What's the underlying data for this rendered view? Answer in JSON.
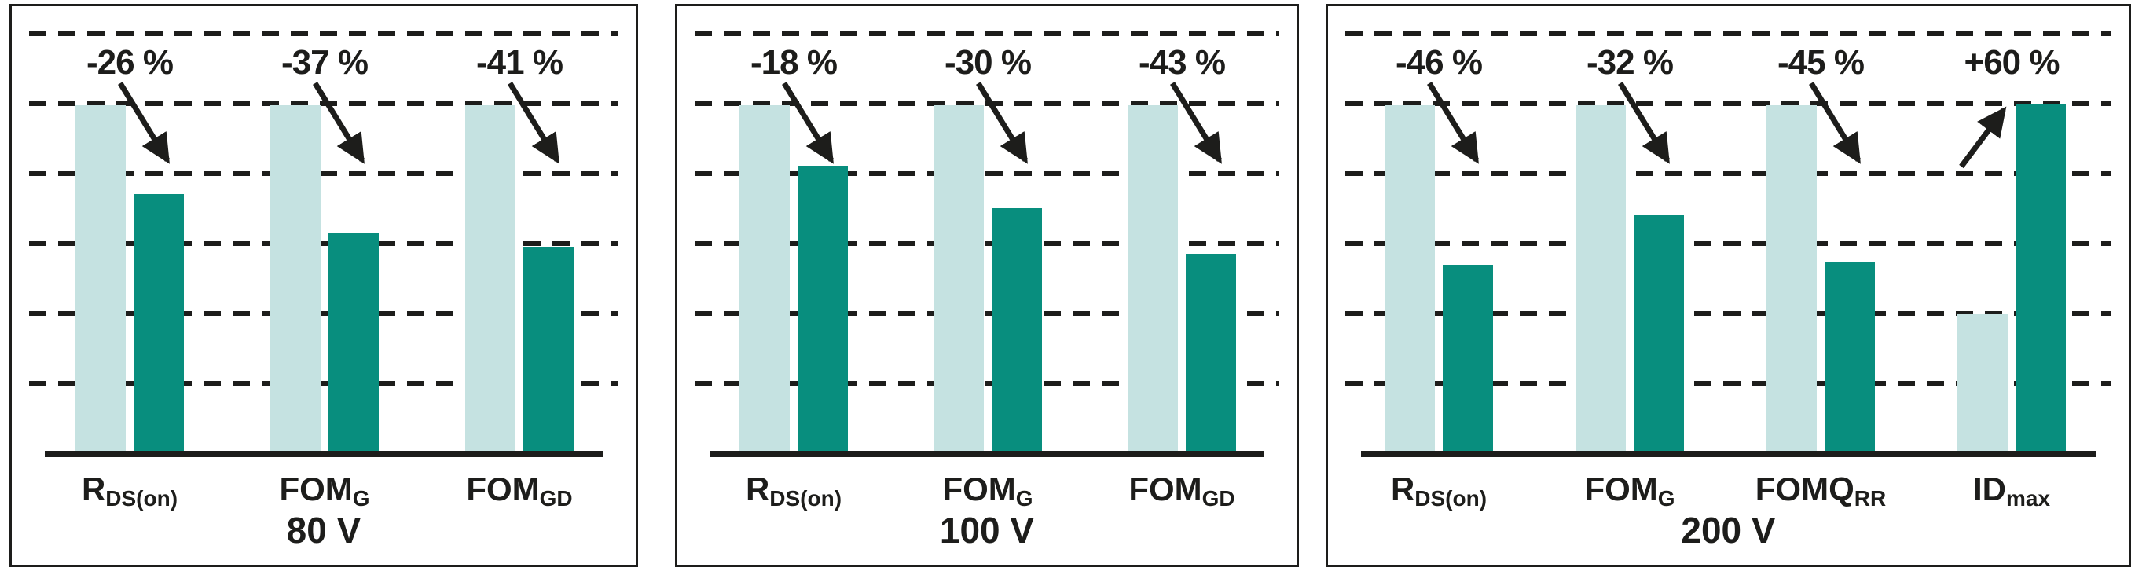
{
  "figure": {
    "description_colors": {
      "light_bar": "#c5e2e1",
      "dark_bar": "#088e7e",
      "line_and_text": "#1d1d1b",
      "background": "#ffffff"
    }
  },
  "chart_data": [
    {
      "type": "bar",
      "title": "80 V",
      "grid": "6 horizontal dashed gridlines, no y-axis labels",
      "categories": [
        "RDS(on)",
        "FOMG",
        "FOMGD"
      ],
      "series": [
        {
          "name": "light-reference-bar",
          "values": [
            100,
            100,
            100
          ]
        },
        {
          "name": "dark-comparison-bar",
          "values": [
            74,
            63,
            59
          ]
        }
      ],
      "groups": [
        {
          "label_main": "R",
          "label_sub": "DS(on)",
          "annotation": "-26 %",
          "light_pct": 100,
          "dark_pct": 74,
          "arrow": "down"
        },
        {
          "label_main": "FOM",
          "label_sub": "G",
          "annotation": "-37 %",
          "light_pct": 100,
          "dark_pct": 63,
          "arrow": "down"
        },
        {
          "label_main": "FOM",
          "label_sub": "GD",
          "annotation": "-41 %",
          "light_pct": 100,
          "dark_pct": 59,
          "arrow": "down"
        }
      ]
    },
    {
      "type": "bar",
      "title": "100 V",
      "grid": "6 horizontal dashed gridlines, no y-axis labels",
      "categories": [
        "RDS(on)",
        "FOMG",
        "FOMGD"
      ],
      "series": [
        {
          "name": "light-reference-bar",
          "values": [
            100,
            100,
            100
          ]
        },
        {
          "name": "dark-comparison-bar",
          "values": [
            82,
            70,
            57
          ]
        }
      ],
      "groups": [
        {
          "label_main": "R",
          "label_sub": "DS(on)",
          "annotation": "-18 %",
          "light_pct": 100,
          "dark_pct": 82,
          "arrow": "down"
        },
        {
          "label_main": "FOM",
          "label_sub": "G",
          "annotation": "-30 %",
          "light_pct": 100,
          "dark_pct": 70,
          "arrow": "down"
        },
        {
          "label_main": "FOM",
          "label_sub": "GD",
          "annotation": "-43 %",
          "light_pct": 100,
          "dark_pct": 57,
          "arrow": "down"
        }
      ]
    },
    {
      "type": "bar",
      "title": "200 V",
      "grid": "6 horizontal dashed gridlines, no y-axis labels",
      "categories": [
        "RDS(on)",
        "FOMG",
        "FOMQRR",
        "IDmax"
      ],
      "series": [
        {
          "name": "light-reference-bar",
          "values": [
            100,
            100,
            100,
            40
          ]
        },
        {
          "name": "dark-comparison-bar",
          "values": [
            54,
            68,
            55,
            100
          ]
        }
      ],
      "groups": [
        {
          "label_main": "R",
          "label_sub": "DS(on)",
          "annotation": "-46 %",
          "light_pct": 100,
          "dark_pct": 54,
          "arrow": "down"
        },
        {
          "label_main": "FOM",
          "label_sub": "G",
          "annotation": "-32 %",
          "light_pct": 100,
          "dark_pct": 68,
          "arrow": "down"
        },
        {
          "label_main": "FOMQ",
          "label_sub": "RR",
          "annotation": "-45 %",
          "light_pct": 100,
          "dark_pct": 55,
          "arrow": "down"
        },
        {
          "label_main": "ID",
          "label_sub": "max",
          "annotation": "+60 %",
          "light_pct": 40,
          "dark_pct": 100,
          "arrow": "up"
        }
      ]
    }
  ]
}
